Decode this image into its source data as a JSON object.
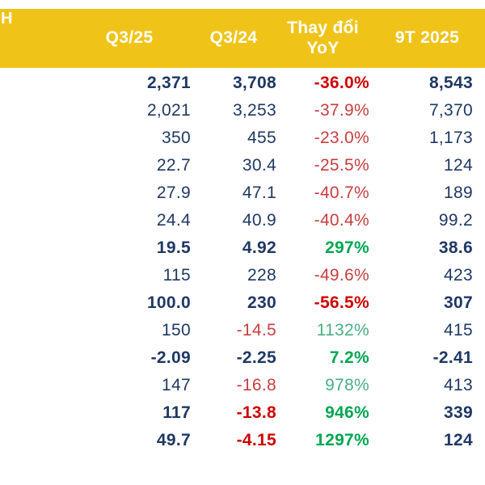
{
  "table": {
    "header_left_fragment": "H",
    "columns": [
      "Q3/25",
      "Q3/24",
      "Thay đổi",
      "9T 2025"
    ],
    "yoy_line2": "YoY",
    "rows": [
      {
        "cells": [
          {
            "text": "2,371",
            "color": "navy",
            "bold": true
          },
          {
            "text": "3,708",
            "color": "navy",
            "bold": true
          },
          {
            "text": "-36.0%",
            "color": "red",
            "bold": true
          },
          {
            "text": "8,543",
            "color": "navy",
            "bold": true
          }
        ]
      },
      {
        "cells": [
          {
            "text": "2,021",
            "color": "navy"
          },
          {
            "text": "3,253",
            "color": "navy"
          },
          {
            "text": "-37.9%",
            "color": "red"
          },
          {
            "text": "7,370",
            "color": "navy"
          }
        ]
      },
      {
        "cells": [
          {
            "text": "350",
            "color": "navy"
          },
          {
            "text": "455",
            "color": "navy"
          },
          {
            "text": "-23.0%",
            "color": "red"
          },
          {
            "text": "1,173",
            "color": "navy"
          }
        ]
      },
      {
        "cells": [
          {
            "text": "22.7",
            "color": "navy"
          },
          {
            "text": "30.4",
            "color": "navy"
          },
          {
            "text": "-25.5%",
            "color": "red"
          },
          {
            "text": "124",
            "color": "navy"
          }
        ]
      },
      {
        "cells": [
          {
            "text": "27.9",
            "color": "navy"
          },
          {
            "text": "47.1",
            "color": "navy"
          },
          {
            "text": "-40.7%",
            "color": "red"
          },
          {
            "text": "189",
            "color": "navy"
          }
        ]
      },
      {
        "cells": [
          {
            "text": "24.4",
            "color": "navy"
          },
          {
            "text": "40.9",
            "color": "navy"
          },
          {
            "text": "-40.4%",
            "color": "red"
          },
          {
            "text": "99.2",
            "color": "navy"
          }
        ]
      },
      {
        "cells": [
          {
            "text": "19.5",
            "color": "navy",
            "bold": true
          },
          {
            "text": "4.92",
            "color": "navy",
            "bold": true
          },
          {
            "text": "297%",
            "color": "green",
            "bold": true
          },
          {
            "text": "38.6",
            "color": "navy",
            "bold": true
          }
        ]
      },
      {
        "cells": [
          {
            "text": "115",
            "color": "navy"
          },
          {
            "text": "228",
            "color": "navy"
          },
          {
            "text": "-49.6%",
            "color": "red"
          },
          {
            "text": "423",
            "color": "navy"
          }
        ]
      },
      {
        "cells": [
          {
            "text": "100.0",
            "color": "navy",
            "bold": true
          },
          {
            "text": "230",
            "color": "navy",
            "bold": true
          },
          {
            "text": "-56.5%",
            "color": "red",
            "bold": true
          },
          {
            "text": "307",
            "color": "navy",
            "bold": true
          }
        ]
      },
      {
        "cells": [
          {
            "text": "150",
            "color": "navy"
          },
          {
            "text": "-14.5",
            "color": "red"
          },
          {
            "text": "1132%",
            "color": "green"
          },
          {
            "text": "415",
            "color": "navy"
          }
        ]
      },
      {
        "cells": [
          {
            "text": "-2.09",
            "color": "navy",
            "bold": true
          },
          {
            "text": "-2.25",
            "color": "navy",
            "bold": true
          },
          {
            "text": "7.2%",
            "color": "green",
            "bold": true
          },
          {
            "text": "-2.41",
            "color": "navy",
            "bold": true
          }
        ]
      },
      {
        "cells": [
          {
            "text": "147",
            "color": "navy"
          },
          {
            "text": "-16.8",
            "color": "red"
          },
          {
            "text": "978%",
            "color": "green"
          },
          {
            "text": "413",
            "color": "navy"
          }
        ]
      },
      {
        "cells": [
          {
            "text": "117",
            "color": "navy",
            "bold": true
          },
          {
            "text": "-13.8",
            "color": "red",
            "bold": true
          },
          {
            "text": "946%",
            "color": "green",
            "bold": true
          },
          {
            "text": "339",
            "color": "navy",
            "bold": true
          }
        ]
      },
      {
        "cells": [
          {
            "text": "49.7",
            "color": "navy",
            "bold": true
          },
          {
            "text": "-4.15",
            "color": "red",
            "bold": true
          },
          {
            "text": "1297%",
            "color": "green",
            "bold": true
          },
          {
            "text": "124",
            "color": "navy",
            "bold": true
          }
        ]
      }
    ]
  },
  "chart_data": {
    "type": "table",
    "title": "",
    "columns": [
      "Q3/25",
      "Q3/24",
      "Thay đổi YoY",
      "9T 2025"
    ],
    "rows": [
      [
        "2,371",
        "3,708",
        "-36.0%",
        "8,543"
      ],
      [
        "2,021",
        "3,253",
        "-37.9%",
        "7,370"
      ],
      [
        "350",
        "455",
        "-23.0%",
        "1,173"
      ],
      [
        "22.7",
        "30.4",
        "-25.5%",
        "124"
      ],
      [
        "27.9",
        "47.1",
        "-40.7%",
        "189"
      ],
      [
        "24.4",
        "40.9",
        "-40.4%",
        "99.2"
      ],
      [
        "19.5",
        "4.92",
        "297%",
        "38.6"
      ],
      [
        "115",
        "228",
        "-49.6%",
        "423"
      ],
      [
        "100.0",
        "230",
        "-56.5%",
        "307"
      ],
      [
        "150",
        "-14.5",
        "1132%",
        "415"
      ],
      [
        "-2.09",
        "-2.25",
        "7.2%",
        "-2.41"
      ],
      [
        "147",
        "-16.8",
        "978%",
        "413"
      ],
      [
        "117",
        "-13.8",
        "946%",
        "339"
      ],
      [
        "49.7",
        "-4.15",
        "1297%",
        "124"
      ]
    ]
  },
  "theme": {
    "header_bg": "#F0C319",
    "header_text": "#FFFFFF",
    "navy": "#1F3864",
    "red": "#C83E3E",
    "red_bold": "#D00000",
    "green": "#4AAE82",
    "green_bold": "#00A651"
  }
}
